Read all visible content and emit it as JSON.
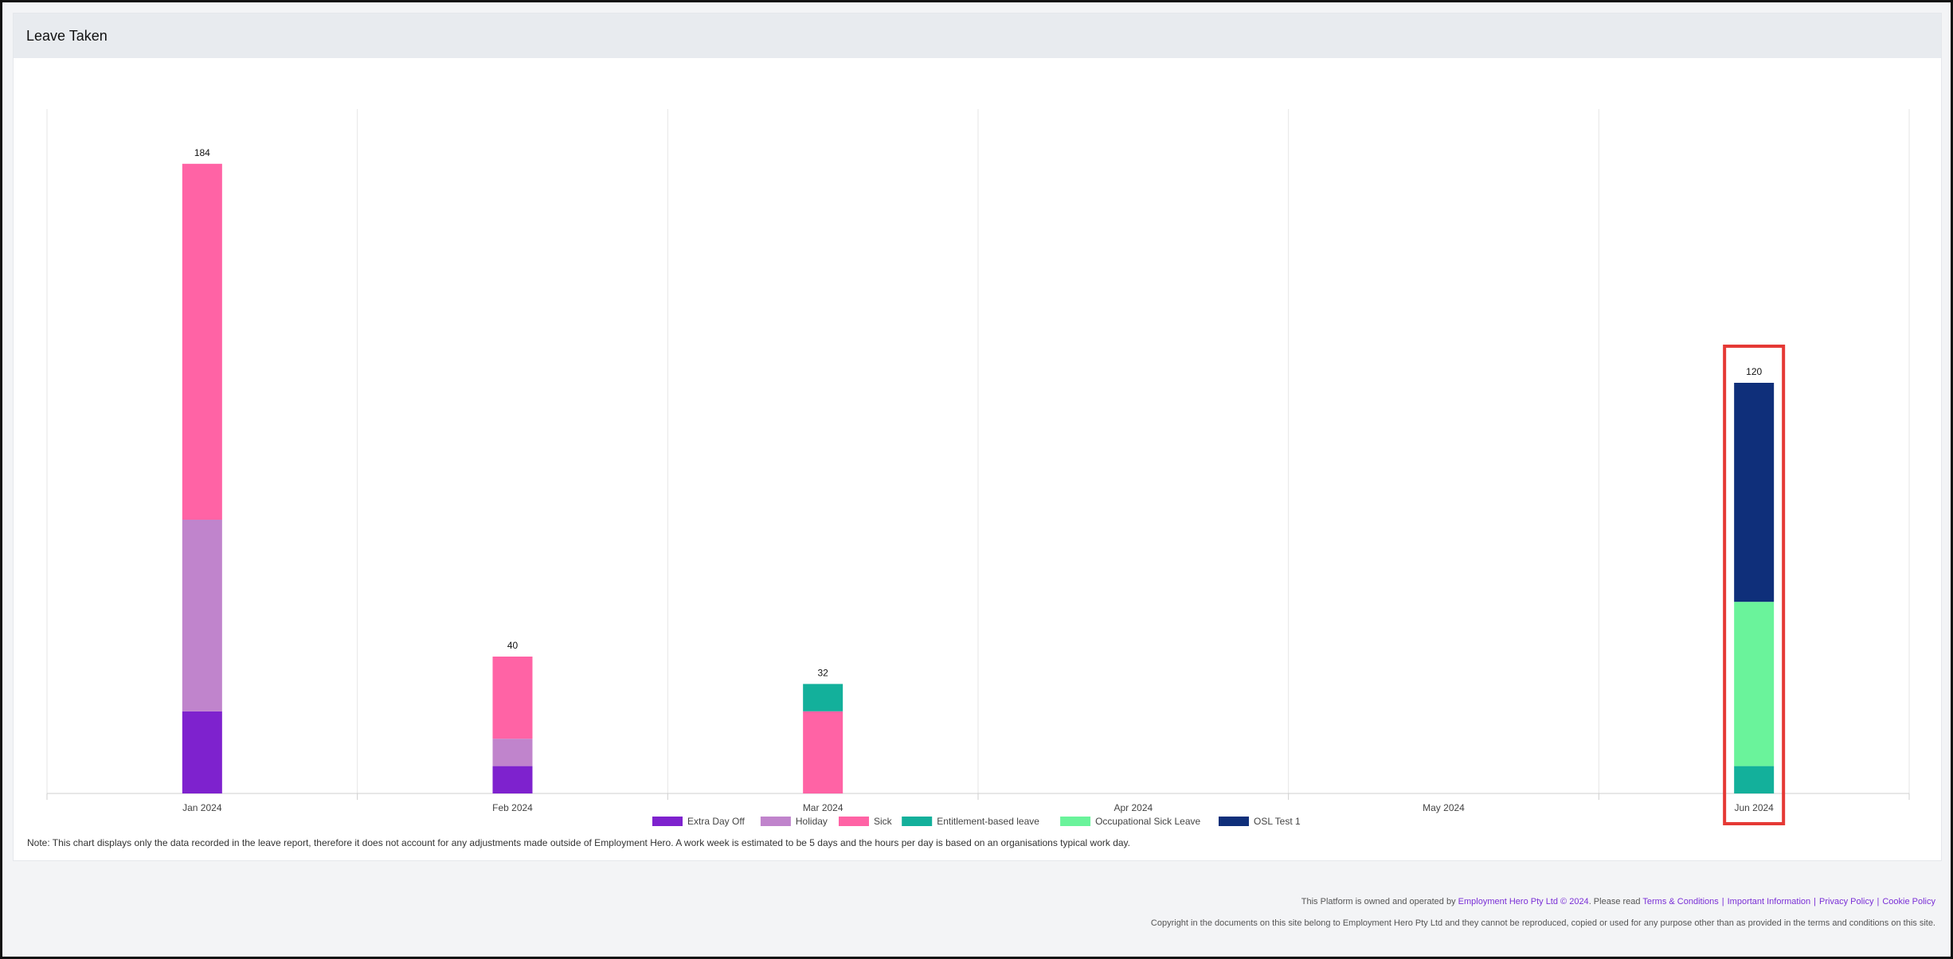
{
  "page": {
    "card_title": "Leave Taken",
    "note": "Note: This chart displays only the data recorded in the leave report, therefore it does not account for any adjustments made outside of Employment Hero. A work week is estimated to be 5 days and the hours per day is based on an organisations typical work day."
  },
  "footer": {
    "prefix": "This Platform is owned and operated by",
    "owner_link": "Employment Hero Pty Ltd © 2024",
    "read_text": ". Please read",
    "links": [
      "Terms & Conditions",
      "Important Information",
      "Privacy Policy",
      "Cookie Policy"
    ],
    "copyright": "Copyright in the documents on this site belong to Employment Hero Pty Ltd and they cannot be reproduced, copied or used for any purpose other than as provided in the terms and conditions on this site."
  },
  "chart_data": {
    "type": "bar",
    "stacked": true,
    "categories": [
      "Jan 2024",
      "Feb 2024",
      "Mar 2024",
      "Apr 2024",
      "May 2024",
      "Jun 2024"
    ],
    "totals": [
      184,
      40,
      32,
      0,
      0,
      120
    ],
    "total_labels": [
      "184",
      "40",
      "32",
      "",
      "",
      "120"
    ],
    "series": [
      {
        "name": "Extra Day Off",
        "color": "#7e22ce",
        "values": [
          24,
          8,
          0,
          0,
          0,
          0
        ]
      },
      {
        "name": "Holiday",
        "color": "#c084cc",
        "values": [
          56,
          8,
          0,
          0,
          0,
          0
        ]
      },
      {
        "name": "Sick",
        "color": "#ff63a5",
        "values": [
          104,
          24,
          24,
          0,
          0,
          0
        ]
      },
      {
        "name": "Entitlement-based leave",
        "color": "#13b09b",
        "values": [
          0,
          0,
          8,
          0,
          0,
          8
        ]
      },
      {
        "name": "Occupational Sick Leave",
        "color": "#6af39b",
        "values": [
          0,
          0,
          0,
          0,
          0,
          48
        ]
      },
      {
        "name": "OSL Test 1",
        "color": "#0f2f7a",
        "values": [
          0,
          0,
          0,
          0,
          0,
          64
        ]
      }
    ],
    "ylim": [
      0,
      200
    ],
    "y_axis_visible": false,
    "grid": "vertical",
    "legend": "bottom-center",
    "highlight": {
      "category": "Jun 2024",
      "color": "#e53935"
    }
  }
}
